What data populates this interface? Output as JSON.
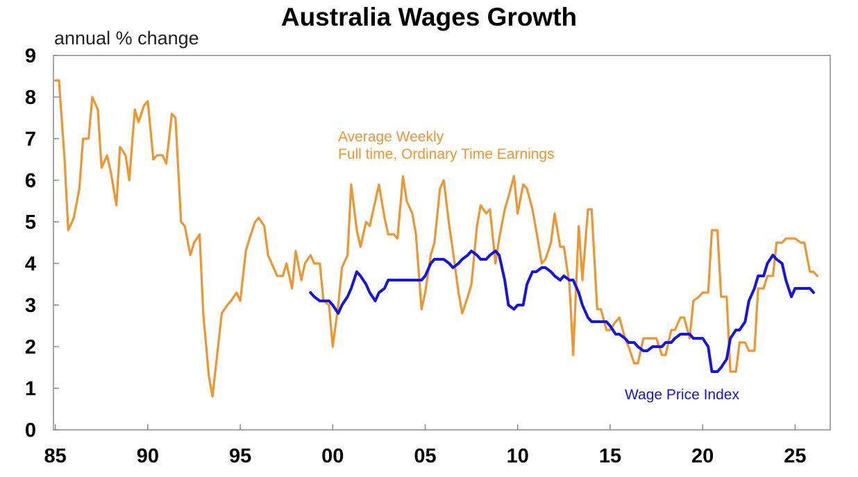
{
  "chart_data": {
    "type": "line",
    "title": "Australia Wages Growth",
    "ylabel": "annual % change",
    "xlabel": "",
    "ylim": [
      0,
      9
    ],
    "xlim": [
      1984.9,
      2026.9
    ],
    "yticks": [
      "0",
      "1",
      "2",
      "3",
      "4",
      "5",
      "6",
      "7",
      "8",
      "9"
    ],
    "xticks": [
      {
        "x": 1985,
        "label": "85"
      },
      {
        "x": 1990,
        "label": "90"
      },
      {
        "x": 1995,
        "label": "95"
      },
      {
        "x": 2000,
        "label": "00"
      },
      {
        "x": 2005,
        "label": "05"
      },
      {
        "x": 2010,
        "label": "10"
      },
      {
        "x": 2015,
        "label": "15"
      },
      {
        "x": 2020,
        "label": "20"
      },
      {
        "x": 2025,
        "label": "25"
      }
    ],
    "grid": false,
    "series": [
      {
        "name": "Average Weekly Full time, Ordinary Time Earnings",
        "color": "#F0952E",
        "points": [
          [
            1985.0,
            8.4
          ],
          [
            1985.2,
            8.4
          ],
          [
            1985.5,
            6.5
          ],
          [
            1985.7,
            4.8
          ],
          [
            1986.0,
            5.1
          ],
          [
            1986.3,
            5.8
          ],
          [
            1986.5,
            7.0
          ],
          [
            1986.8,
            7.0
          ],
          [
            1987.0,
            8.0
          ],
          [
            1987.3,
            7.7
          ],
          [
            1987.5,
            6.3
          ],
          [
            1987.8,
            6.6
          ],
          [
            1988.0,
            6.2
          ],
          [
            1988.3,
            5.4
          ],
          [
            1988.5,
            6.8
          ],
          [
            1988.8,
            6.6
          ],
          [
            1989.0,
            6.0
          ],
          [
            1989.3,
            7.7
          ],
          [
            1989.5,
            7.4
          ],
          [
            1989.8,
            7.8
          ],
          [
            1990.0,
            7.9
          ],
          [
            1990.3,
            6.5
          ],
          [
            1990.5,
            6.6
          ],
          [
            1990.8,
            6.6
          ],
          [
            1991.0,
            6.4
          ],
          [
            1991.3,
            7.6
          ],
          [
            1991.5,
            7.5
          ],
          [
            1991.8,
            5.0
          ],
          [
            1992.0,
            4.9
          ],
          [
            1992.3,
            4.2
          ],
          [
            1992.5,
            4.5
          ],
          [
            1992.8,
            4.7
          ],
          [
            1993.0,
            2.8
          ],
          [
            1993.3,
            1.3
          ],
          [
            1993.5,
            0.8
          ],
          [
            1993.8,
            2.0
          ],
          [
            1994.0,
            2.8
          ],
          [
            1994.3,
            3.0
          ],
          [
            1994.5,
            3.1
          ],
          [
            1994.8,
            3.3
          ],
          [
            1995.0,
            3.1
          ],
          [
            1995.3,
            4.3
          ],
          [
            1995.5,
            4.6
          ],
          [
            1995.8,
            5.0
          ],
          [
            1996.0,
            5.1
          ],
          [
            1996.3,
            4.9
          ],
          [
            1996.5,
            4.2
          ],
          [
            1996.8,
            3.9
          ],
          [
            1997.0,
            3.7
          ],
          [
            1997.3,
            3.7
          ],
          [
            1997.5,
            4.0
          ],
          [
            1997.8,
            3.4
          ],
          [
            1998.0,
            4.3
          ],
          [
            1998.3,
            3.6
          ],
          [
            1998.5,
            4.0
          ],
          [
            1998.8,
            4.2
          ],
          [
            1999.0,
            4.0
          ],
          [
            1999.3,
            4.0
          ],
          [
            1999.5,
            3.1
          ],
          [
            1999.8,
            3.0
          ],
          [
            2000.0,
            2.0
          ],
          [
            2000.3,
            3.0
          ],
          [
            2000.5,
            3.9
          ],
          [
            2000.8,
            4.2
          ],
          [
            2001.0,
            5.9
          ],
          [
            2001.3,
            4.8
          ],
          [
            2001.5,
            4.4
          ],
          [
            2001.8,
            5.0
          ],
          [
            2002.0,
            4.9
          ],
          [
            2002.3,
            5.5
          ],
          [
            2002.5,
            5.9
          ],
          [
            2002.8,
            5.1
          ],
          [
            2003.0,
            4.7
          ],
          [
            2003.3,
            4.7
          ],
          [
            2003.5,
            4.6
          ],
          [
            2003.8,
            6.1
          ],
          [
            2004.0,
            5.5
          ],
          [
            2004.3,
            5.2
          ],
          [
            2004.5,
            4.7
          ],
          [
            2004.8,
            2.9
          ],
          [
            2005.0,
            3.3
          ],
          [
            2005.3,
            4.2
          ],
          [
            2005.5,
            4.5
          ],
          [
            2005.8,
            5.8
          ],
          [
            2006.0,
            6.0
          ],
          [
            2006.3,
            4.9
          ],
          [
            2006.5,
            4.3
          ],
          [
            2006.8,
            3.3
          ],
          [
            2007.0,
            2.8
          ],
          [
            2007.3,
            3.2
          ],
          [
            2007.5,
            3.5
          ],
          [
            2007.8,
            4.9
          ],
          [
            2008.0,
            5.4
          ],
          [
            2008.3,
            5.2
          ],
          [
            2008.5,
            5.3
          ],
          [
            2008.8,
            4.0
          ],
          [
            2009.0,
            4.6
          ],
          [
            2009.3,
            5.3
          ],
          [
            2009.5,
            5.6
          ],
          [
            2009.8,
            6.1
          ],
          [
            2010.0,
            5.2
          ],
          [
            2010.3,
            5.9
          ],
          [
            2010.5,
            5.8
          ],
          [
            2010.8,
            5.3
          ],
          [
            2011.0,
            4.8
          ],
          [
            2011.3,
            4.0
          ],
          [
            2011.5,
            4.1
          ],
          [
            2011.8,
            4.5
          ],
          [
            2012.0,
            5.2
          ],
          [
            2012.3,
            4.4
          ],
          [
            2012.5,
            4.4
          ],
          [
            2012.8,
            3.5
          ],
          [
            2013.0,
            1.8
          ],
          [
            2013.3,
            4.9
          ],
          [
            2013.5,
            3.6
          ],
          [
            2013.8,
            5.3
          ],
          [
            2014.0,
            5.3
          ],
          [
            2014.3,
            2.9
          ],
          [
            2014.5,
            2.9
          ],
          [
            2014.8,
            2.4
          ],
          [
            2015.0,
            2.4
          ],
          [
            2015.3,
            2.6
          ],
          [
            2015.5,
            2.7
          ],
          [
            2015.8,
            2.2
          ],
          [
            2016.0,
            2.0
          ],
          [
            2016.3,
            1.6
          ],
          [
            2016.5,
            1.6
          ],
          [
            2016.8,
            2.2
          ],
          [
            2017.0,
            2.2
          ],
          [
            2017.3,
            2.2
          ],
          [
            2017.5,
            2.2
          ],
          [
            2017.8,
            1.8
          ],
          [
            2018.0,
            1.8
          ],
          [
            2018.3,
            2.4
          ],
          [
            2018.5,
            2.4
          ],
          [
            2018.8,
            2.7
          ],
          [
            2019.0,
            2.7
          ],
          [
            2019.3,
            2.2
          ],
          [
            2019.5,
            3.1
          ],
          [
            2019.8,
            3.2
          ],
          [
            2020.0,
            3.3
          ],
          [
            2020.3,
            3.3
          ],
          [
            2020.5,
            4.8
          ],
          [
            2020.8,
            4.8
          ],
          [
            2021.0,
            3.2
          ],
          [
            2021.3,
            3.2
          ],
          [
            2021.5,
            1.4
          ],
          [
            2021.8,
            1.4
          ],
          [
            2022.0,
            2.1
          ],
          [
            2022.3,
            2.1
          ],
          [
            2022.5,
            1.9
          ],
          [
            2022.8,
            1.9
          ],
          [
            2023.0,
            3.4
          ],
          [
            2023.3,
            3.4
          ],
          [
            2023.5,
            3.7
          ],
          [
            2023.8,
            3.7
          ],
          [
            2024.0,
            4.5
          ],
          [
            2024.3,
            4.5
          ],
          [
            2024.5,
            4.6
          ],
          [
            2024.8,
            4.6
          ],
          [
            2025.0,
            4.6
          ],
          [
            2025.3,
            4.5
          ],
          [
            2025.5,
            4.5
          ],
          [
            2025.8,
            3.8
          ],
          [
            2026.0,
            3.8
          ],
          [
            2026.2,
            3.7
          ]
        ]
      },
      {
        "name": "Wage Price Index",
        "color": "#1414E6",
        "points": [
          [
            1998.8,
            3.3
          ],
          [
            1999.0,
            3.2
          ],
          [
            1999.3,
            3.1
          ],
          [
            1999.5,
            3.1
          ],
          [
            1999.8,
            3.1
          ],
          [
            2000.0,
            3.0
          ],
          [
            2000.3,
            2.8
          ],
          [
            2000.5,
            3.0
          ],
          [
            2000.8,
            3.2
          ],
          [
            2001.0,
            3.4
          ],
          [
            2001.3,
            3.8
          ],
          [
            2001.5,
            3.7
          ],
          [
            2001.8,
            3.5
          ],
          [
            2002.0,
            3.3
          ],
          [
            2002.3,
            3.1
          ],
          [
            2002.5,
            3.3
          ],
          [
            2002.8,
            3.4
          ],
          [
            2003.0,
            3.6
          ],
          [
            2003.3,
            3.6
          ],
          [
            2003.5,
            3.6
          ],
          [
            2003.8,
            3.6
          ],
          [
            2004.0,
            3.6
          ],
          [
            2004.3,
            3.6
          ],
          [
            2004.5,
            3.6
          ],
          [
            2004.8,
            3.6
          ],
          [
            2005.0,
            3.7
          ],
          [
            2005.3,
            4.0
          ],
          [
            2005.5,
            4.1
          ],
          [
            2005.8,
            4.1
          ],
          [
            2006.0,
            4.1
          ],
          [
            2006.3,
            4.0
          ],
          [
            2006.5,
            3.9
          ],
          [
            2006.8,
            4.0
          ],
          [
            2007.0,
            4.1
          ],
          [
            2007.3,
            4.2
          ],
          [
            2007.5,
            4.3
          ],
          [
            2007.8,
            4.2
          ],
          [
            2008.0,
            4.1
          ],
          [
            2008.3,
            4.1
          ],
          [
            2008.5,
            4.2
          ],
          [
            2008.8,
            4.3
          ],
          [
            2009.0,
            4.2
          ],
          [
            2009.3,
            3.6
          ],
          [
            2009.5,
            3.0
          ],
          [
            2009.8,
            2.9
          ],
          [
            2010.0,
            3.0
          ],
          [
            2010.3,
            3.0
          ],
          [
            2010.5,
            3.5
          ],
          [
            2010.8,
            3.8
          ],
          [
            2011.0,
            3.8
          ],
          [
            2011.3,
            3.9
          ],
          [
            2011.5,
            3.9
          ],
          [
            2011.8,
            3.8
          ],
          [
            2012.0,
            3.7
          ],
          [
            2012.3,
            3.6
          ],
          [
            2012.5,
            3.7
          ],
          [
            2012.8,
            3.6
          ],
          [
            2013.0,
            3.6
          ],
          [
            2013.3,
            3.3
          ],
          [
            2013.5,
            3.0
          ],
          [
            2013.8,
            2.7
          ],
          [
            2014.0,
            2.6
          ],
          [
            2014.3,
            2.6
          ],
          [
            2014.5,
            2.6
          ],
          [
            2014.8,
            2.6
          ],
          [
            2015.0,
            2.5
          ],
          [
            2015.3,
            2.3
          ],
          [
            2015.5,
            2.3
          ],
          [
            2015.8,
            2.2
          ],
          [
            2016.0,
            2.1
          ],
          [
            2016.3,
            2.1
          ],
          [
            2016.5,
            2.0
          ],
          [
            2016.8,
            1.9
          ],
          [
            2017.0,
            1.9
          ],
          [
            2017.3,
            2.0
          ],
          [
            2017.5,
            2.0
          ],
          [
            2017.8,
            2.0
          ],
          [
            2018.0,
            2.1
          ],
          [
            2018.3,
            2.1
          ],
          [
            2018.5,
            2.2
          ],
          [
            2018.8,
            2.3
          ],
          [
            2019.0,
            2.3
          ],
          [
            2019.3,
            2.3
          ],
          [
            2019.5,
            2.2
          ],
          [
            2019.8,
            2.2
          ],
          [
            2020.0,
            2.2
          ],
          [
            2020.3,
            2.0
          ],
          [
            2020.5,
            1.4
          ],
          [
            2020.8,
            1.4
          ],
          [
            2021.0,
            1.5
          ],
          [
            2021.3,
            1.7
          ],
          [
            2021.5,
            2.2
          ],
          [
            2021.8,
            2.4
          ],
          [
            2022.0,
            2.4
          ],
          [
            2022.3,
            2.6
          ],
          [
            2022.5,
            3.1
          ],
          [
            2022.8,
            3.4
          ],
          [
            2023.0,
            3.7
          ],
          [
            2023.3,
            3.7
          ],
          [
            2023.5,
            4.0
          ],
          [
            2023.8,
            4.2
          ],
          [
            2024.0,
            4.1
          ],
          [
            2024.3,
            4.0
          ],
          [
            2024.5,
            3.6
          ],
          [
            2024.8,
            3.2
          ],
          [
            2025.0,
            3.4
          ],
          [
            2025.3,
            3.4
          ],
          [
            2025.5,
            3.4
          ],
          [
            2025.8,
            3.4
          ],
          [
            2026.0,
            3.3
          ]
        ]
      }
    ],
    "annotations": [
      {
        "lines": [
          "Average Weekly",
          "Full time, Ordinary Time Earnings"
        ],
        "series": 0
      },
      {
        "lines": [
          "Wage Price Index"
        ],
        "series": 1
      }
    ]
  }
}
